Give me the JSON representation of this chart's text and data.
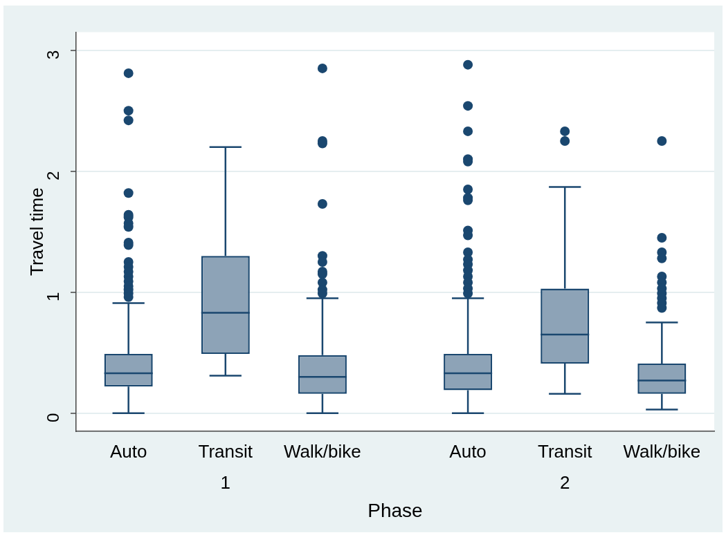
{
  "chart_data": {
    "type": "box",
    "xlabel": "Phase",
    "ylabel": "Travel time",
    "categories": [
      "Auto",
      "Transit",
      "Walk/bike",
      "Auto",
      "Transit",
      "Walk/bike"
    ],
    "annotations": [
      "1",
      "2"
    ],
    "ylim": [
      -0.15,
      3.15
    ],
    "yticks": [
      0,
      1,
      2,
      3
    ],
    "grid": "y",
    "series": [
      {
        "color": "#1a476f",
        "boxes": [
          {
            "low": 0,
            "q1": 0.22,
            "median": 0.33,
            "q3": 0.49,
            "high": 0.91,
            "outliers": [
              2.81,
              2.5,
              2.42,
              1.82,
              1.64,
              1.62,
              1.57,
              1.54,
              1.41,
              1.39,
              1.25,
              1.21,
              1.17,
              1.13,
              1.09,
              1.05,
              1.02,
              0.99,
              0.96
            ]
          },
          {
            "low": 0.31,
            "q1": 0.49,
            "median": 0.83,
            "q3": 1.3,
            "high": 2.2
          },
          {
            "low": 0,
            "q1": 0.16,
            "median": 0.3,
            "q3": 0.48,
            "high": 0.95,
            "outliers": [
              2.85,
              2.25,
              2.23,
              1.73,
              1.3,
              1.25,
              1.17,
              1.15,
              1.08,
              1.02,
              0.99
            ]
          },
          {
            "low": 0,
            "q1": 0.19,
            "median": 0.33,
            "q3": 0.49,
            "high": 0.95,
            "outliers": [
              2.88,
              2.54,
              2.33,
              2.1,
              2.08,
              1.85,
              1.78,
              1.76,
              1.51,
              1.47,
              1.33,
              1.27,
              1.23,
              1.18,
              1.13,
              1.08,
              1.03,
              0.99
            ]
          },
          {
            "low": 0.16,
            "q1": 0.41,
            "median": 0.65,
            "q3": 1.03,
            "high": 1.87,
            "outliers": [
              2.33,
              2.25
            ]
          },
          {
            "low": 0.03,
            "q1": 0.16,
            "median": 0.27,
            "q3": 0.41,
            "high": 0.75,
            "outliers": [
              2.25,
              1.45,
              1.33,
              1.28,
              1.13,
              1.08,
              1.03,
              0.99,
              0.95,
              0.91,
              0.87
            ]
          }
        ]
      }
    ]
  }
}
